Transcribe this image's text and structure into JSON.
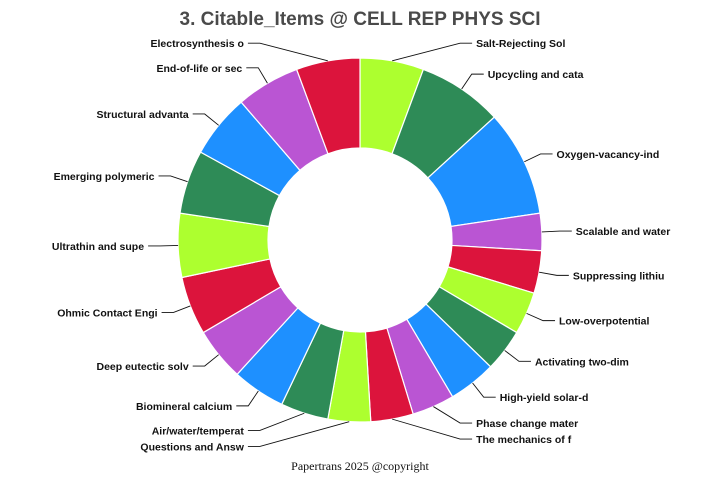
{
  "chart_data": {
    "type": "pie",
    "donut": true,
    "title": "3. Citable_Items @ CELL REP PHYS SCI",
    "footer": "Papertrans 2025 @copyright",
    "legend": "none",
    "slices": [
      {
        "label": "Salt-Rejecting Sol",
        "value": 6,
        "color": "#adff2f"
      },
      {
        "label": "Upcycling and cata",
        "value": 8,
        "color": "#2e8b57"
      },
      {
        "label": "Oxygen-vacancy-ind",
        "value": 10,
        "color": "#1e90ff"
      },
      {
        "label": "Scalable and water",
        "value": 3.5,
        "color": "#ba55d3"
      },
      {
        "label": "Suppressing lithiu",
        "value": 4,
        "color": "#dc143c"
      },
      {
        "label": "Low-overpotential",
        "value": 4,
        "color": "#adff2f"
      },
      {
        "label": "Activating two-dim",
        "value": 4,
        "color": "#2e8b57"
      },
      {
        "label": "High-yield solar-d",
        "value": 4.5,
        "color": "#1e90ff"
      },
      {
        "label": "Phase change mater",
        "value": 4,
        "color": "#ba55d3"
      },
      {
        "label": "The mechanics of f",
        "value": 4,
        "color": "#dc143c"
      },
      {
        "label": "Questions and Answ",
        "value": 4,
        "color": "#adff2f"
      },
      {
        "label": "Air/water/temperat",
        "value": 4.5,
        "color": "#2e8b57"
      },
      {
        "label": "Biomineral calcium",
        "value": 5,
        "color": "#1e90ff"
      },
      {
        "label": "Deep eutectic solv",
        "value": 5,
        "color": "#ba55d3"
      },
      {
        "label": "Ohmic Contact Engi",
        "value": 5.5,
        "color": "#dc143c"
      },
      {
        "label": "Ultrathin and supe",
        "value": 6,
        "color": "#adff2f"
      },
      {
        "label": "Emerging polymeric",
        "value": 6,
        "color": "#2e8b57"
      },
      {
        "label": "Structural advanta",
        "value": 6,
        "color": "#1e90ff"
      },
      {
        "label": "End-of-life or sec",
        "value": 6,
        "color": "#ba55d3"
      },
      {
        "label": "Electrosynthesis o",
        "value": 6,
        "color": "#dc143c"
      }
    ]
  }
}
